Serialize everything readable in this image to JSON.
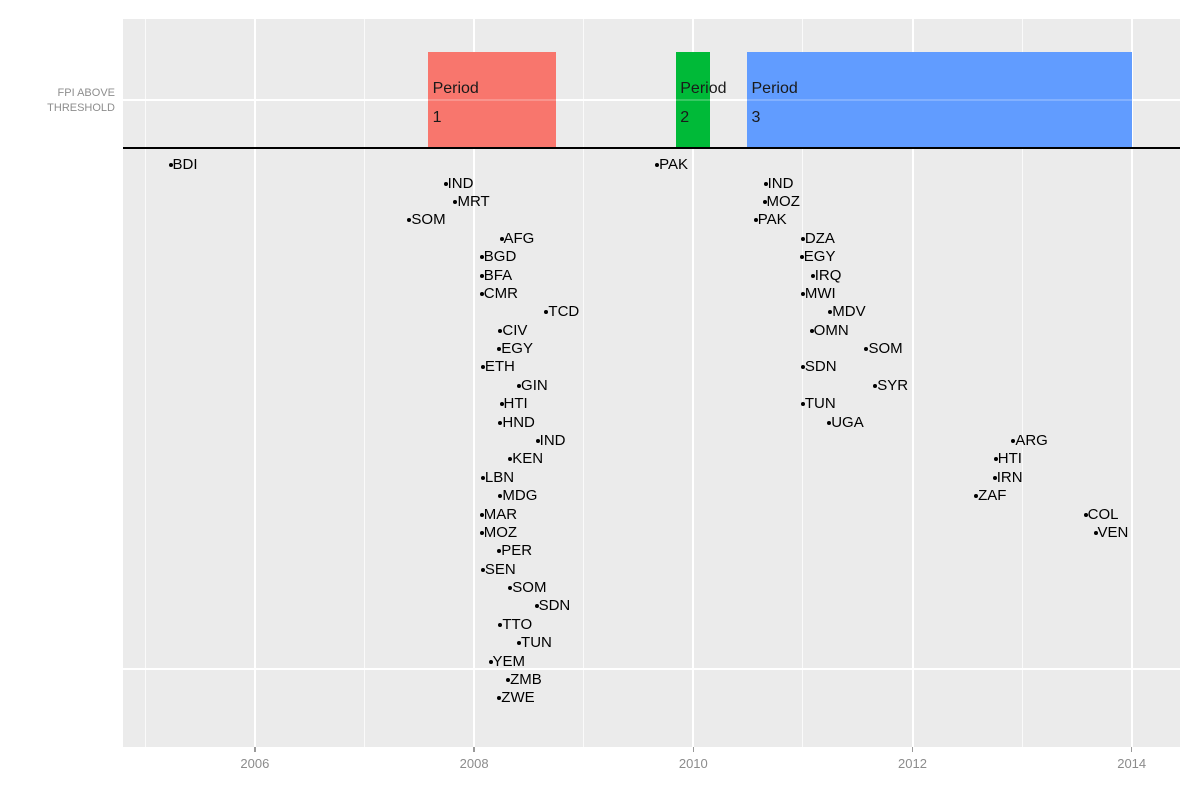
{
  "chart_data": {
    "type": "scatter",
    "title": "",
    "xlabel": "",
    "ylabel": "FPI ABOVE THRESHOLD",
    "ylabel_lines": [
      "FPI ABOVE",
      "THRESHOLD"
    ],
    "x_ticks": [
      2006,
      2008,
      2010,
      2012,
      2014
    ],
    "x_minor_ticks": [
      2005,
      2007,
      2009,
      2011,
      2013
    ],
    "x_range": [
      2004.8,
      2014.44
    ],
    "row_count": 30,
    "grid": "on",
    "panel_bg": "#EBEBEB",
    "grid_color": "#FFFFFF",
    "threshold_line": {
      "color": "#000000"
    },
    "periods": [
      {
        "name": "Period 1",
        "label_line1": "Period",
        "label_line2": "1",
        "start": 2007.58,
        "end": 2008.75,
        "color": "#F8766D"
      },
      {
        "name": "Period 2",
        "label_line1": "Period",
        "label_line2": "2",
        "start": 2009.84,
        "end": 2010.15,
        "color": "#00BA38"
      },
      {
        "name": "Period 3",
        "label_line1": "Period",
        "label_line2": "3",
        "start": 2010.49,
        "end": 2014.0,
        "color": "#619CFF"
      }
    ],
    "points": [
      {
        "label": "BDI",
        "year": 2005.23,
        "row": 1
      },
      {
        "label": "PAK",
        "year": 2009.67,
        "row": 1
      },
      {
        "label": "IND",
        "year": 2007.74,
        "row": 2
      },
      {
        "label": "IND",
        "year": 2010.66,
        "row": 2
      },
      {
        "label": "MRT",
        "year": 2007.83,
        "row": 3
      },
      {
        "label": "MOZ",
        "year": 2010.65,
        "row": 3
      },
      {
        "label": "SOM",
        "year": 2007.41,
        "row": 4
      },
      {
        "label": "PAK",
        "year": 2010.57,
        "row": 4
      },
      {
        "label": "AFG",
        "year": 2008.25,
        "row": 5
      },
      {
        "label": "DZA",
        "year": 2011.0,
        "row": 5
      },
      {
        "label": "BGD",
        "year": 2008.07,
        "row": 6
      },
      {
        "label": "EGY",
        "year": 2010.99,
        "row": 6
      },
      {
        "label": "BFA",
        "year": 2008.07,
        "row": 7
      },
      {
        "label": "IRQ",
        "year": 2011.09,
        "row": 7
      },
      {
        "label": "CMR",
        "year": 2008.07,
        "row": 8
      },
      {
        "label": "MWI",
        "year": 2011.0,
        "row": 8
      },
      {
        "label": "TCD",
        "year": 2008.66,
        "row": 9
      },
      {
        "label": "MDV",
        "year": 2011.25,
        "row": 9
      },
      {
        "label": "CIV",
        "year": 2008.24,
        "row": 10
      },
      {
        "label": "OMN",
        "year": 2011.08,
        "row": 10
      },
      {
        "label": "EGY",
        "year": 2008.23,
        "row": 11
      },
      {
        "label": "SOM",
        "year": 2011.58,
        "row": 11
      },
      {
        "label": "ETH",
        "year": 2008.08,
        "row": 12
      },
      {
        "label": "SDN",
        "year": 2011.0,
        "row": 12
      },
      {
        "label": "GIN",
        "year": 2008.41,
        "row": 13
      },
      {
        "label": "SYR",
        "year": 2011.66,
        "row": 13
      },
      {
        "label": "HTI",
        "year": 2008.25,
        "row": 14
      },
      {
        "label": "TUN",
        "year": 2011.0,
        "row": 14
      },
      {
        "label": "HND",
        "year": 2008.24,
        "row": 15
      },
      {
        "label": "UGA",
        "year": 2011.24,
        "row": 15
      },
      {
        "label": "IND",
        "year": 2008.58,
        "row": 16
      },
      {
        "label": "ARG",
        "year": 2012.92,
        "row": 16
      },
      {
        "label": "KEN",
        "year": 2008.33,
        "row": 17
      },
      {
        "label": "HTI",
        "year": 2012.76,
        "row": 17
      },
      {
        "label": "LBN",
        "year": 2008.08,
        "row": 18
      },
      {
        "label": "IRN",
        "year": 2012.75,
        "row": 18
      },
      {
        "label": "MDG",
        "year": 2008.24,
        "row": 19
      },
      {
        "label": "ZAF",
        "year": 2012.58,
        "row": 19
      },
      {
        "label": "MAR",
        "year": 2008.07,
        "row": 20
      },
      {
        "label": "COL",
        "year": 2013.58,
        "row": 20
      },
      {
        "label": "MOZ",
        "year": 2008.07,
        "row": 21
      },
      {
        "label": "VEN",
        "year": 2013.67,
        "row": 21
      },
      {
        "label": "PER",
        "year": 2008.23,
        "row": 22
      },
      {
        "label": "SEN",
        "year": 2008.08,
        "row": 23
      },
      {
        "label": "SOM",
        "year": 2008.33,
        "row": 24
      },
      {
        "label": "SDN",
        "year": 2008.57,
        "row": 25
      },
      {
        "label": "TTO",
        "year": 2008.24,
        "row": 26
      },
      {
        "label": "TUN",
        "year": 2008.41,
        "row": 27
      },
      {
        "label": "YEM",
        "year": 2008.15,
        "row": 28
      },
      {
        "label": "ZMB",
        "year": 2008.31,
        "row": 29
      },
      {
        "label": "ZWE",
        "year": 2008.23,
        "row": 30
      }
    ]
  }
}
